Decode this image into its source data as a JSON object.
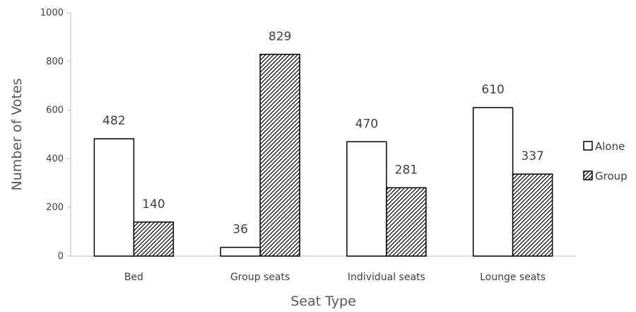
{
  "chart_data": {
    "type": "bar",
    "title": "",
    "xlabel": "Seat Type",
    "ylabel": "Number of Votes",
    "ylim": [
      0,
      1000
    ],
    "yticks": [
      0,
      200,
      400,
      600,
      800,
      1000
    ],
    "grid": false,
    "legend_position": "right",
    "categories": [
      "Bed",
      "Group seats",
      "Individual seats",
      "Lounge seats"
    ],
    "series": [
      {
        "name": "Alone",
        "values": [
          482,
          36,
          470,
          610
        ],
        "fill": "plain"
      },
      {
        "name": "Group",
        "values": [
          140,
          829,
          281,
          337
        ],
        "fill": "hatched"
      }
    ]
  }
}
